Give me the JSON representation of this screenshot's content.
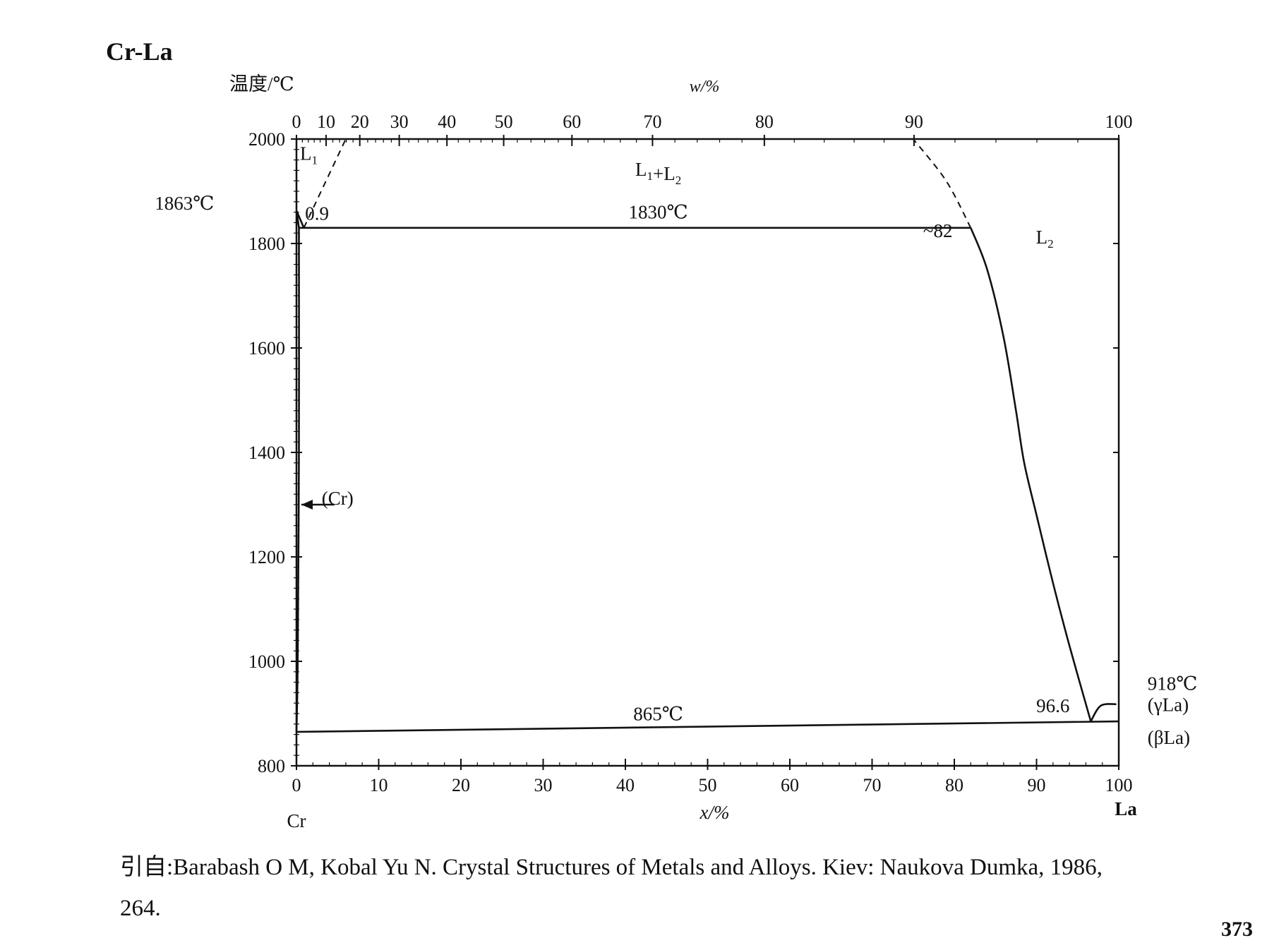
{
  "page": {
    "title": "Cr-La",
    "citation_line1": "引自:Barabash O M, Kobal Yu N. Crystal Structures of Metals and Alloys. Kiev: Naukova Dumka, 1986,",
    "citation_line2": "264.",
    "page_number": "373"
  },
  "chart_data": {
    "type": "line",
    "title": "Cr-La",
    "ylabel": "温度/℃",
    "xlabel": "x/%",
    "x2label": "w/%",
    "xlim": [
      0,
      100
    ],
    "ylim": [
      800,
      2000
    ],
    "yticks": [
      800,
      1000,
      1200,
      1400,
      1600,
      1800,
      2000
    ],
    "xticks": [
      0,
      10,
      20,
      30,
      40,
      50,
      60,
      70,
      80,
      90,
      100
    ],
    "top_axis": {
      "label": "w/%",
      "ticks": [
        {
          "w": 0,
          "x": 0
        },
        {
          "w": 10,
          "x": 3.6
        },
        {
          "w": 20,
          "x": 7.7
        },
        {
          "w": 30,
          "x": 12.5
        },
        {
          "w": 40,
          "x": 18.3
        },
        {
          "w": 50,
          "x": 25.2
        },
        {
          "w": 60,
          "x": 33.5
        },
        {
          "w": 70,
          "x": 43.3
        },
        {
          "w": 80,
          "x": 56.9
        },
        {
          "w": 90,
          "x": 75.1
        },
        {
          "w": 100,
          "x": 100
        }
      ]
    },
    "end_labels": {
      "left": "Cr",
      "right": "La"
    },
    "lines": [
      {
        "name": "Cr liquidus",
        "style": "solid",
        "points": [
          [
            0,
            1863
          ],
          [
            0.9,
            1830
          ]
        ]
      },
      {
        "name": "Cr solidus",
        "style": "solid",
        "points": [
          [
            0,
            1863
          ],
          [
            0.3,
            1830
          ]
        ]
      },
      {
        "name": "miscibility gap left",
        "style": "dashed",
        "points": [
          [
            0.9,
            1830
          ],
          [
            3.0,
            1900
          ],
          [
            6.0,
            2000
          ]
        ]
      },
      {
        "name": "monotectic 1830",
        "style": "solid",
        "points": [
          [
            0.3,
            1830
          ],
          [
            82,
            1830
          ]
        ]
      },
      {
        "name": "miscibility gap right",
        "style": "dashed",
        "points": [
          [
            82,
            1830
          ],
          [
            79,
            1920
          ],
          [
            75,
            2000
          ]
        ]
      },
      {
        "name": "L2 liquidus",
        "style": "solid",
        "points": [
          [
            82,
            1830
          ],
          [
            84,
            1750
          ],
          [
            86,
            1620
          ],
          [
            87.5,
            1480
          ],
          [
            88.5,
            1380
          ],
          [
            90,
            1280
          ],
          [
            92,
            1150
          ],
          [
            94,
            1030
          ],
          [
            96.6,
            885
          ]
        ]
      },
      {
        "name": "(Cr) solvus",
        "style": "solid",
        "points": [
          [
            0.3,
            1830
          ],
          [
            0.3,
            1400
          ],
          [
            0.15,
            1000
          ],
          [
            0,
            865
          ]
        ]
      },
      {
        "name": "eutectic 865",
        "style": "solid",
        "points": [
          [
            0,
            865
          ],
          [
            100,
            885
          ]
        ]
      },
      {
        "name": "gamma La liquidus",
        "style": "solid",
        "points": [
          [
            96.6,
            885
          ],
          [
            97.8,
            915
          ],
          [
            99.7,
            918
          ]
        ]
      }
    ],
    "annotations": [
      {
        "text": "L",
        "sub": "1",
        "x": 1.5,
        "y": 1960
      },
      {
        "text": "L",
        "sub": "1",
        "text2": "+L",
        "sub2": "2",
        "x": 44,
        "y": 1930
      },
      {
        "text": "L",
        "sub": "2",
        "x": 91,
        "y": 1800
      },
      {
        "text": "1863℃",
        "x": -10,
        "y": 1865
      },
      {
        "text": "0.9",
        "x": 2.5,
        "y": 1845
      },
      {
        "text": "1830℃",
        "x": 44,
        "y": 1848
      },
      {
        "text": "~82",
        "x": 78,
        "y": 1812
      },
      {
        "text": "(Cr)",
        "x": 5,
        "y": 1300
      },
      {
        "text": "865℃",
        "x": 44,
        "y": 887
      },
      {
        "text": "96.6",
        "x": 92,
        "y": 903
      },
      {
        "text": "918℃",
        "x": 103.5,
        "y": 945
      },
      {
        "text": "(γLa)",
        "x": 103.5,
        "y": 905
      },
      {
        "text": "(βLa)",
        "x": 103.5,
        "y": 842
      }
    ]
  }
}
